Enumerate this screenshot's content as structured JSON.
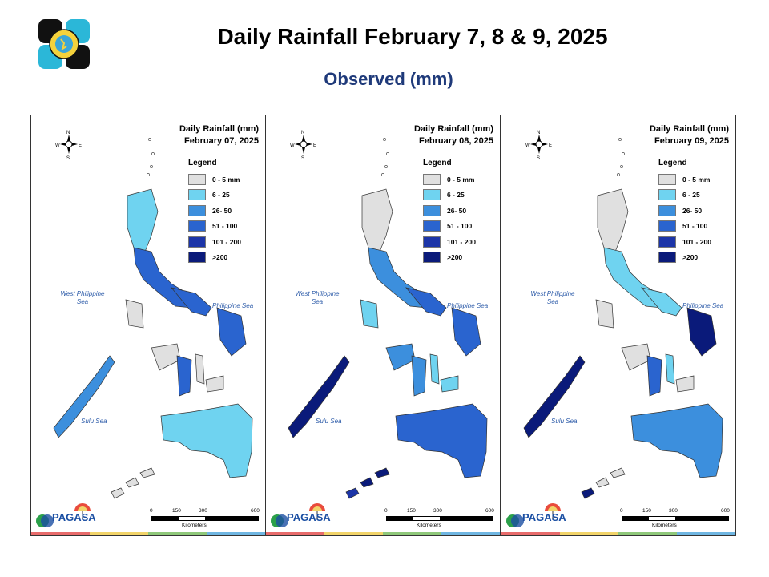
{
  "header": {
    "title": "Daily Rainfall February 7, 8 & 9, 2025",
    "subtitle": "Observed (mm)"
  },
  "panels": [
    {
      "heading": "Daily Rainfall (mm)",
      "date": "February 07, 2025"
    },
    {
      "heading": "Daily Rainfall (mm)",
      "date": "February 08, 2025"
    },
    {
      "heading": "Daily Rainfall (mm)",
      "date": "February 09, 2025"
    }
  ],
  "legend": {
    "title": "Legend",
    "items": [
      {
        "label": "0 - 5 mm",
        "color": "#e0e0e0"
      },
      {
        "label": "6 - 25",
        "color": "#6fd3f0"
      },
      {
        "label": "26- 50",
        "color": "#3c8fdd"
      },
      {
        "label": "51 - 100",
        "color": "#2a64cf"
      },
      {
        "label": "101 - 200",
        "color": "#1c35a8"
      },
      {
        "label": ">200",
        "color": "#0a1a7a"
      }
    ]
  },
  "seas": {
    "west": "West Philippine Sea",
    "phil": "Philippine Sea",
    "sulu": "Sulu Sea"
  },
  "compass": {
    "n": "N",
    "s": "S",
    "e": "E",
    "w": "W"
  },
  "scale": {
    "t0": "0",
    "t1": "150",
    "t2": "300",
    "t3": "600",
    "unit": "Kilometers"
  },
  "branding": {
    "agency": "PAGASA"
  },
  "colors": {
    "land_outline": "#333333",
    "title_blue": "#1f3a7a"
  }
}
